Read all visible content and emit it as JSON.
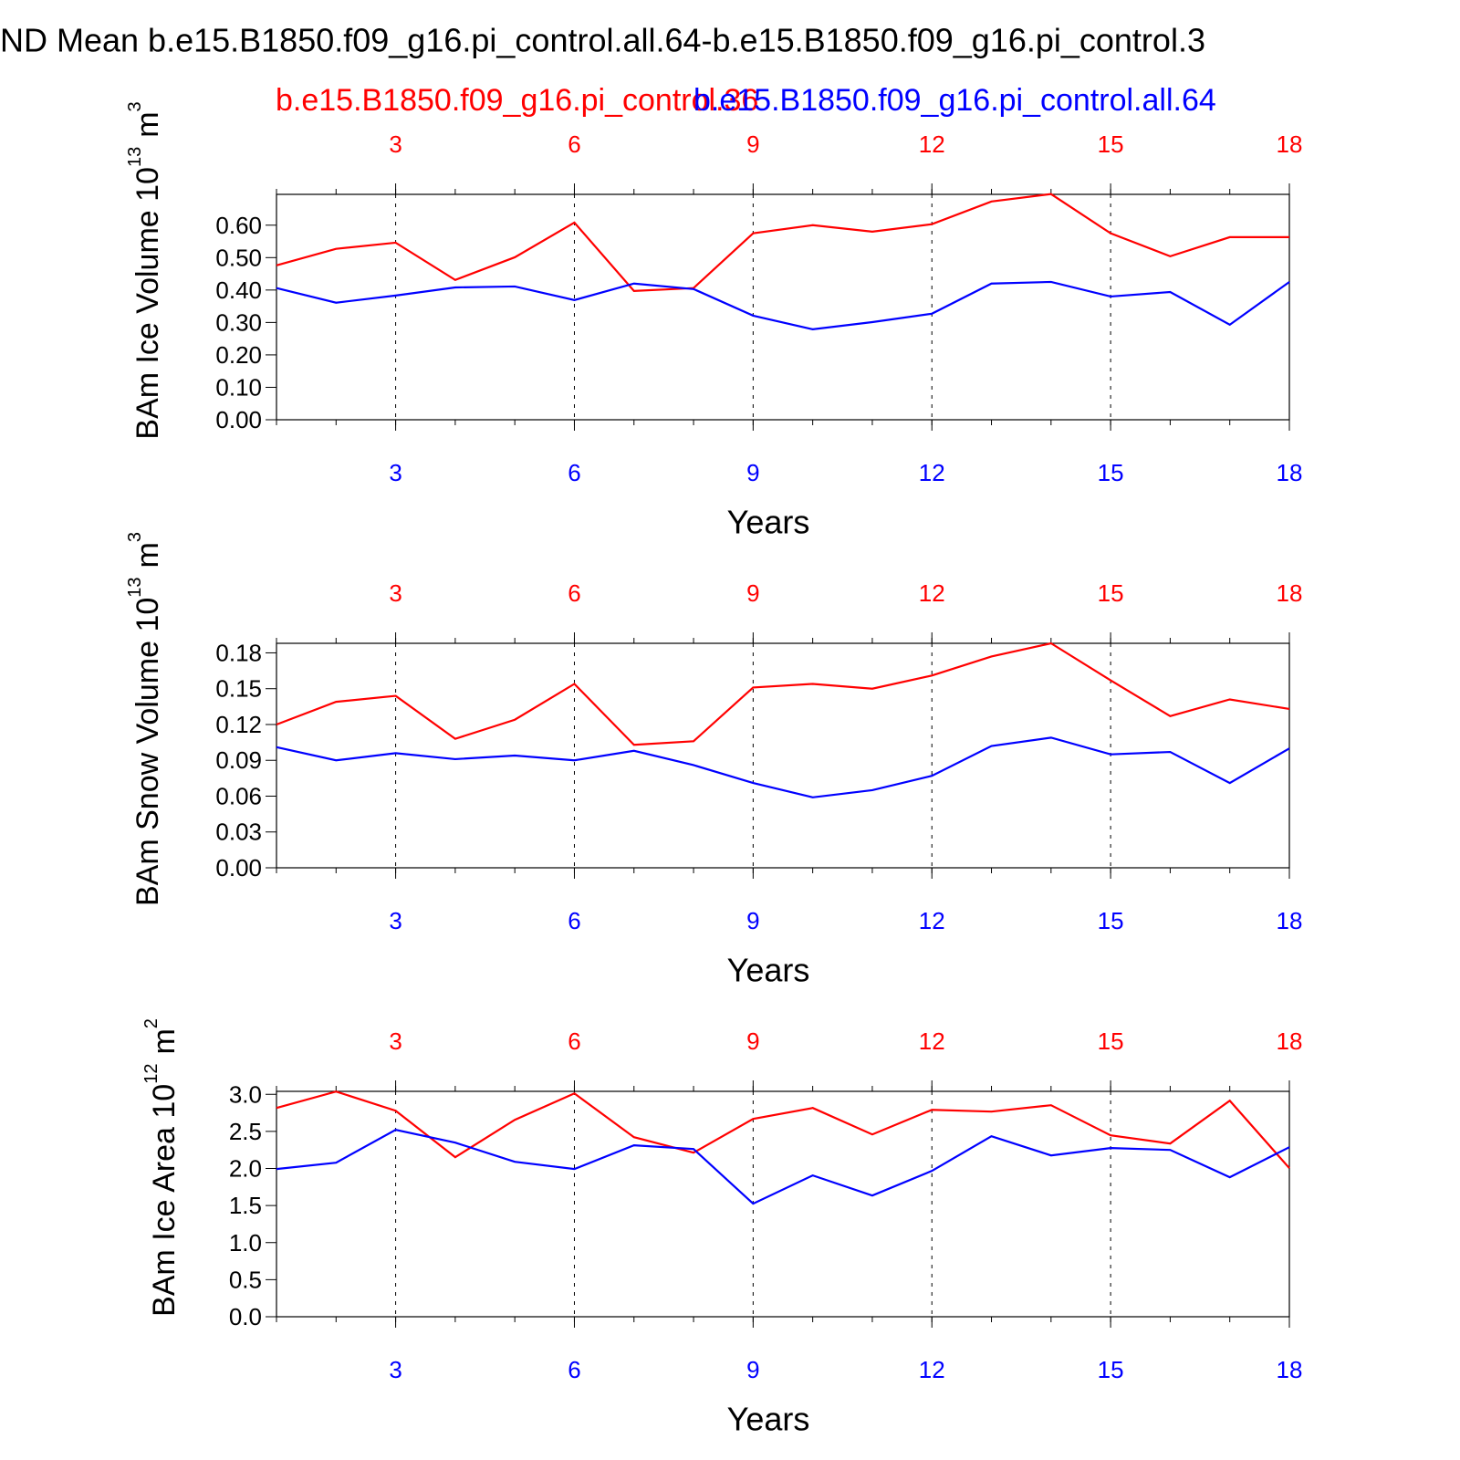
{
  "title": "ND Mean b.e15.B1850.f09_g16.pi_control.all.64-b.e15.B1850.f09_g16.pi_control.3",
  "cases": [
    {
      "name": "b.e15.B1850.f09_g16.pi_control.36",
      "color": "#ff0000"
    },
    {
      "name": "b.e15.B1850.f09_g16.pi_control.all.64",
      "color": "#0000ff"
    }
  ],
  "chart_data": [
    {
      "type": "line",
      "xlabel": "Years",
      "ylabel": {
        "text": "BAm Ice Volume 10",
        "exponent": "13",
        "unit": "m",
        "unit_exponent": "3"
      },
      "x": [
        1,
        2,
        3,
        4,
        5,
        6,
        7,
        8,
        9,
        10,
        11,
        12,
        13,
        14,
        15,
        16,
        17,
        18
      ],
      "xlim": [
        1,
        18
      ],
      "xticks": [
        3,
        6,
        9,
        12,
        15,
        18
      ],
      "ylim": [
        0,
        0.695
      ],
      "yticks": [
        {
          "value": 0,
          "label": "0.00"
        },
        {
          "value": 0.1,
          "label": "0.10"
        },
        {
          "value": 0.2,
          "label": "0.20"
        },
        {
          "value": 0.3,
          "label": "0.30"
        },
        {
          "value": 0.4,
          "label": "0.40"
        },
        {
          "value": 0.5,
          "label": "0.50"
        },
        {
          "value": 0.6,
          "label": "0.60"
        }
      ],
      "series": [
        {
          "color": "#ff0000",
          "values": [
            0.476,
            0.527,
            0.546,
            0.431,
            0.501,
            0.608,
            0.397,
            0.406,
            0.575,
            0.6,
            0.58,
            0.603,
            0.673,
            0.696,
            0.575,
            0.504,
            0.563,
            0.563
          ]
        },
        {
          "color": "#0000ff",
          "values": [
            0.406,
            0.361,
            0.383,
            0.408,
            0.411,
            0.369,
            0.42,
            0.403,
            0.321,
            0.279,
            0.301,
            0.327,
            0.42,
            0.425,
            0.38,
            0.394,
            0.293,
            0.425
          ]
        }
      ]
    },
    {
      "type": "line",
      "xlabel": "Years",
      "ylabel": {
        "text": "BAm Snow Volume 10",
        "exponent": "13",
        "unit": "m",
        "unit_exponent": "3"
      },
      "x": [
        1,
        2,
        3,
        4,
        5,
        6,
        7,
        8,
        9,
        10,
        11,
        12,
        13,
        14,
        15,
        16,
        17,
        18
      ],
      "xlim": [
        1,
        18
      ],
      "xticks": [
        3,
        6,
        9,
        12,
        15,
        18
      ],
      "ylim": [
        0,
        0.188
      ],
      "yticks": [
        {
          "value": 0,
          "label": "0.00"
        },
        {
          "value": 0.03,
          "label": "0.03"
        },
        {
          "value": 0.06,
          "label": "0.06"
        },
        {
          "value": 0.09,
          "label": "0.09"
        },
        {
          "value": 0.12,
          "label": "0.12"
        },
        {
          "value": 0.15,
          "label": "0.15"
        },
        {
          "value": 0.18,
          "label": "0.18"
        }
      ],
      "series": [
        {
          "color": "#ff0000",
          "values": [
            0.12,
            0.139,
            0.144,
            0.108,
            0.124,
            0.154,
            0.103,
            0.106,
            0.151,
            0.154,
            0.15,
            0.161,
            0.177,
            0.188,
            0.157,
            0.127,
            0.141,
            0.133
          ]
        },
        {
          "color": "#0000ff",
          "values": [
            0.101,
            0.09,
            0.096,
            0.091,
            0.094,
            0.09,
            0.098,
            0.086,
            0.071,
            0.059,
            0.065,
            0.077,
            0.102,
            0.109,
            0.095,
            0.097,
            0.071,
            0.1
          ]
        }
      ]
    },
    {
      "type": "line",
      "xlabel": "Years",
      "ylabel": {
        "text": "BAm Ice Area 10",
        "exponent": "12",
        "unit": "m",
        "unit_exponent": "2"
      },
      "x": [
        1,
        2,
        3,
        4,
        5,
        6,
        7,
        8,
        9,
        10,
        11,
        12,
        13,
        14,
        15,
        16,
        17,
        18
      ],
      "xlim": [
        1,
        18
      ],
      "xticks": [
        3,
        6,
        9,
        12,
        15,
        18
      ],
      "ylim": [
        0,
        3.04
      ],
      "yticks": [
        {
          "value": 0,
          "label": "0.0"
        },
        0.5,
        {
          "value": 1,
          "label": "1.0"
        },
        1.5,
        {
          "value": 2,
          "label": "2.0"
        },
        2.5,
        {
          "value": 3,
          "label": "3.0"
        }
      ],
      "series": [
        {
          "color": "#ff0000",
          "values": [
            2.816,
            3.037,
            2.779,
            2.152,
            2.656,
            3.012,
            2.422,
            2.213,
            2.668,
            2.816,
            2.459,
            2.791,
            2.767,
            2.853,
            2.447,
            2.336,
            2.914,
            2.004
          ]
        },
        {
          "color": "#0000ff",
          "values": [
            1.992,
            2.078,
            2.521,
            2.348,
            2.09,
            1.992,
            2.312,
            2.262,
            1.525,
            1.906,
            1.635,
            1.967,
            2.435,
            2.176,
            2.275,
            2.25,
            1.881,
            2.287
          ]
        }
      ]
    }
  ]
}
